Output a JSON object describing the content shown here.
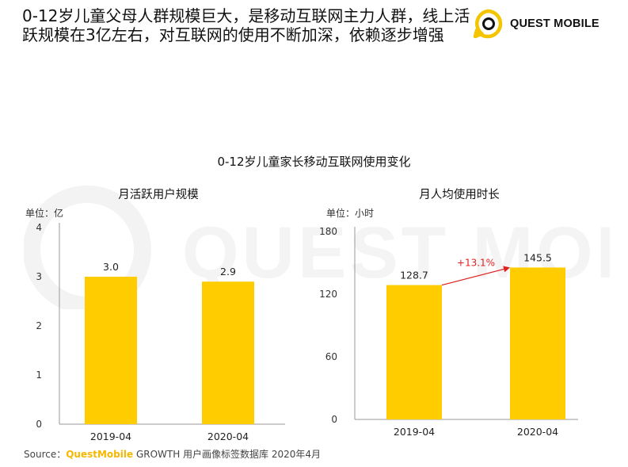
{
  "headline": {
    "line1": "0-12岁儿童父母人群规模巨大，是移动互联网主力人群，线上活",
    "line2": "跃规模在3亿左右，对互联网的使用不断加深，依赖逐步增强"
  },
  "logo": {
    "text": "QUEST MOBILE",
    "icon": "questmobile-logo-icon",
    "color": "#f5c400"
  },
  "watermark": {
    "text": "QUEST MOBILE"
  },
  "chart_title": "0-12岁儿童家长移动互联网使用变化",
  "source": {
    "prefix": "Source：",
    "brand": "QuestMobile",
    "rest": " GROWTH 用户画像标签数据库 2020年4月"
  },
  "colors": {
    "bar": "#ffcc00",
    "annotation": "#e02020",
    "axis": "#999999"
  },
  "chart_data": [
    {
      "type": "bar",
      "title": "月活跃用户规模",
      "unit": "单位：亿",
      "categories": [
        "2019-04",
        "2020-04"
      ],
      "values": [
        3.0,
        2.9
      ],
      "value_labels": [
        "3.0",
        "2.9"
      ],
      "ylim": [
        0,
        4
      ],
      "yticks": [
        0,
        1,
        2,
        3,
        4
      ],
      "grid": false
    },
    {
      "type": "bar",
      "title": "月人均使用时长",
      "unit": "单位：小时",
      "categories": [
        "2019-04",
        "2020-04"
      ],
      "values": [
        128.7,
        145.5
      ],
      "value_labels": [
        "128.7",
        "145.5"
      ],
      "ylim": [
        0,
        180
      ],
      "yticks": [
        0,
        60,
        120,
        180
      ],
      "grid": false,
      "annotation": {
        "text": "+13.1%",
        "from": "2019-04",
        "to": "2020-04"
      }
    }
  ]
}
